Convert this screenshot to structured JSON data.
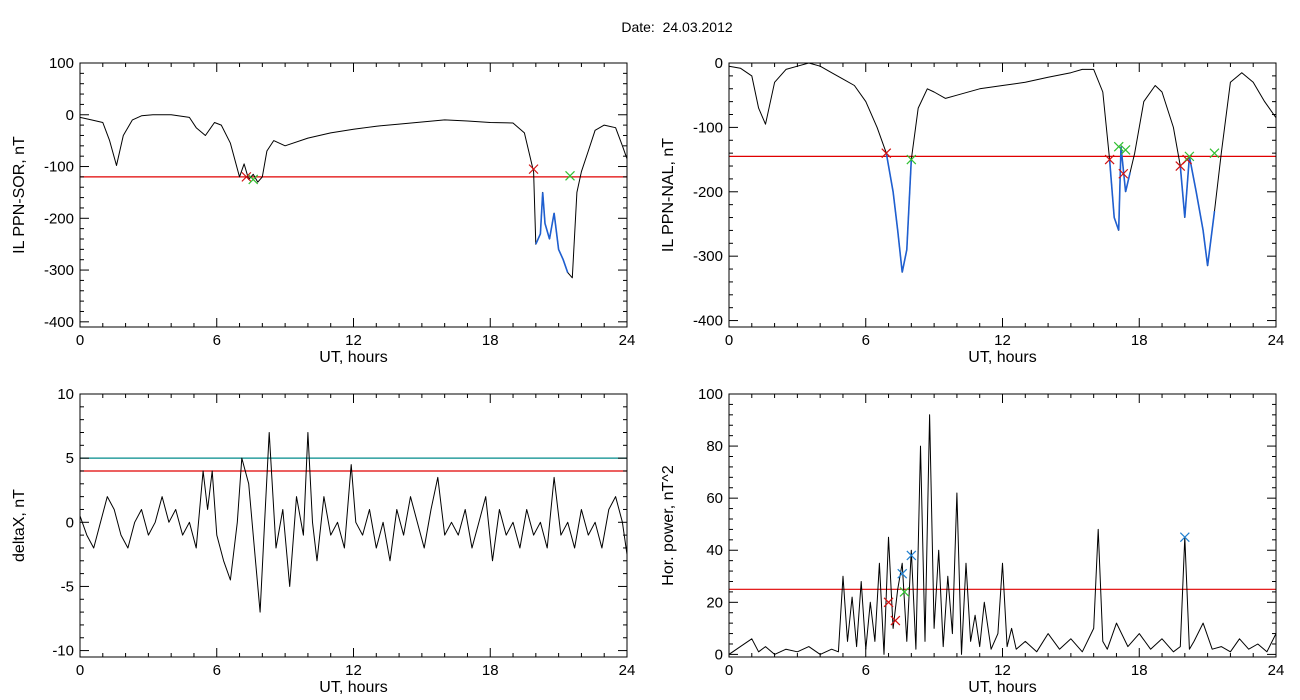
{
  "figure": {
    "title": "Date:  24.03.2012"
  },
  "colors": {
    "axis": "#000000",
    "threshold_red": "#e00000",
    "threshold_teal": "#008b8b",
    "event_blue": "#1f5fd0",
    "marker_red": "#d01010",
    "marker_green": "#30c030",
    "marker_blue": "#2080d0"
  },
  "chart_data": [
    {
      "type": "line",
      "id": "il-sor",
      "xlabel": "UT, hours",
      "ylabel": "IL PPN-SOR, nT",
      "xlim": [
        0,
        24
      ],
      "ylim": [
        -410,
        100
      ],
      "xticks": [
        0,
        6,
        12,
        18,
        24
      ],
      "yticks": [
        100,
        0,
        -100,
        -200,
        -300,
        -400
      ],
      "threshold": {
        "value": -120,
        "color": "red"
      },
      "series": [
        {
          "x": [
            0,
            0.5,
            1.0,
            1.3,
            1.6,
            1.9,
            2.3,
            2.7,
            3.2,
            4.0,
            4.8,
            5.1,
            5.5,
            5.9,
            6.2,
            6.6,
            7.0,
            7.2,
            7.4,
            7.6,
            7.8,
            8.0,
            8.2,
            8.5,
            9.0,
            10.0,
            11.0,
            12.0,
            13.0,
            14.0,
            15.0,
            16.0,
            17.0,
            18.0,
            19.0,
            19.5,
            19.9,
            20.0,
            20.2,
            20.3,
            20.4,
            20.6,
            20.8,
            21.0,
            21.2,
            21.4,
            21.6,
            21.8,
            22.0,
            22.3,
            22.6,
            23.0,
            23.5,
            23.8,
            24.0
          ],
          "y": [
            -5,
            -10,
            -15,
            -50,
            -98,
            -40,
            -10,
            -2,
            0,
            0,
            -5,
            -25,
            -40,
            -15,
            -20,
            -55,
            -120,
            -95,
            -125,
            -115,
            -130,
            -120,
            -70,
            -50,
            -60,
            -45,
            -35,
            -28,
            -22,
            -18,
            -14,
            -10,
            -12,
            -15,
            -16,
            -35,
            -110,
            -250,
            -230,
            -150,
            -210,
            -240,
            -190,
            -260,
            -280,
            -305,
            -315,
            -150,
            -110,
            -70,
            -30,
            -20,
            -25,
            -60,
            -85
          ]
        }
      ],
      "event_segments": [
        [
          19.95,
          21.5
        ]
      ],
      "markers": [
        {
          "x": 7.3,
          "y": -120,
          "color": "red"
        },
        {
          "x": 7.6,
          "y": -125,
          "color": "green"
        },
        {
          "x": 19.9,
          "y": -105,
          "color": "red"
        },
        {
          "x": 21.5,
          "y": -118,
          "color": "green"
        }
      ]
    },
    {
      "type": "line",
      "id": "il-nal",
      "xlabel": "UT, hours",
      "ylabel": "IL PPN-NAL, nT",
      "xlim": [
        0,
        24
      ],
      "ylim": [
        -410,
        0
      ],
      "xticks": [
        0,
        6,
        12,
        18,
        24
      ],
      "yticks": [
        0,
        -100,
        -200,
        -300,
        -400
      ],
      "threshold": {
        "value": -145,
        "color": "red"
      },
      "series": [
        {
          "x": [
            0,
            0.5,
            1.0,
            1.3,
            1.6,
            2.0,
            2.5,
            3.0,
            3.5,
            4.0,
            4.5,
            5.0,
            5.5,
            6.0,
            6.5,
            6.9,
            7.2,
            7.4,
            7.6,
            7.8,
            8.0,
            8.3,
            8.7,
            9.0,
            9.5,
            10.0,
            11.0,
            12.0,
            13.0,
            14.0,
            15.0,
            15.5,
            16.0,
            16.4,
            16.7,
            16.9,
            17.1,
            17.2,
            17.4,
            17.6,
            17.8,
            18.2,
            18.7,
            19.0,
            19.5,
            19.8,
            20.0,
            20.2,
            20.5,
            20.8,
            21.0,
            21.3,
            21.6,
            22.0,
            22.5,
            23.0,
            23.5,
            24.0
          ],
          "y": [
            -5,
            -8,
            -20,
            -70,
            -95,
            -30,
            -10,
            -5,
            0,
            -5,
            -15,
            -25,
            -35,
            -60,
            -100,
            -140,
            -200,
            -260,
            -325,
            -290,
            -150,
            -70,
            -40,
            -45,
            -55,
            -50,
            -40,
            -35,
            -30,
            -22,
            -15,
            -10,
            -10,
            -45,
            -150,
            -240,
            -260,
            -130,
            -200,
            -170,
            -140,
            -60,
            -35,
            -45,
            -100,
            -160,
            -240,
            -145,
            -200,
            -260,
            -315,
            -230,
            -140,
            -30,
            -15,
            -30,
            -60,
            -85
          ]
        }
      ],
      "event_segments": [
        [
          6.9,
          8.0
        ],
        [
          16.7,
          17.6
        ],
        [
          19.8,
          21.3
        ]
      ],
      "markers": [
        {
          "x": 6.9,
          "y": -140,
          "color": "red"
        },
        {
          "x": 8.0,
          "y": -150,
          "color": "green"
        },
        {
          "x": 16.7,
          "y": -150,
          "color": "red"
        },
        {
          "x": 17.1,
          "y": -130,
          "color": "green"
        },
        {
          "x": 17.3,
          "y": -172,
          "color": "red"
        },
        {
          "x": 17.4,
          "y": -135,
          "color": "green"
        },
        {
          "x": 19.8,
          "y": -160,
          "color": "red"
        },
        {
          "x": 20.1,
          "y": -150,
          "color": "red"
        },
        {
          "x": 20.2,
          "y": -145,
          "color": "green"
        },
        {
          "x": 21.3,
          "y": -140,
          "color": "green"
        }
      ]
    },
    {
      "type": "line",
      "id": "delta-x",
      "xlabel": "UT, hours",
      "ylabel": "deltaX, nT",
      "xlim": [
        0,
        24
      ],
      "ylim": [
        -10.5,
        10
      ],
      "xticks": [
        0,
        6,
        12,
        18,
        24
      ],
      "yticks": [
        10,
        5,
        0,
        -5,
        -10
      ],
      "thresholds": [
        {
          "value": 5,
          "color": "teal"
        },
        {
          "value": 4,
          "color": "red"
        }
      ],
      "series": [
        {
          "x": [
            0,
            0.3,
            0.6,
            0.9,
            1.2,
            1.5,
            1.8,
            2.1,
            2.4,
            2.7,
            3.0,
            3.3,
            3.6,
            3.9,
            4.2,
            4.5,
            4.8,
            5.1,
            5.4,
            5.6,
            5.8,
            6.0,
            6.3,
            6.6,
            6.9,
            7.1,
            7.4,
            7.7,
            7.9,
            8.1,
            8.3,
            8.6,
            8.9,
            9.2,
            9.5,
            9.8,
            10.0,
            10.2,
            10.4,
            10.7,
            11.0,
            11.3,
            11.6,
            11.9,
            12.1,
            12.4,
            12.7,
            13.0,
            13.3,
            13.6,
            13.9,
            14.2,
            14.5,
            14.8,
            15.1,
            15.4,
            15.7,
            16.0,
            16.3,
            16.6,
            16.9,
            17.2,
            17.5,
            17.8,
            18.1,
            18.4,
            18.7,
            19.0,
            19.3,
            19.6,
            19.9,
            20.2,
            20.5,
            20.8,
            21.1,
            21.4,
            21.7,
            22.0,
            22.3,
            22.6,
            22.9,
            23.2,
            23.5,
            23.8,
            24.0
          ],
          "y": [
            0.5,
            -1,
            -2,
            0,
            2,
            1,
            -1,
            -2,
            0,
            1,
            -1,
            0,
            2,
            0,
            1,
            -1,
            0,
            -2,
            4,
            1,
            4,
            -1,
            -3,
            -4.5,
            0,
            5,
            3,
            -3,
            -7,
            0,
            7,
            -2,
            1,
            -5,
            2,
            -1,
            7,
            0,
            -3,
            2,
            -1,
            0,
            -2,
            4.5,
            0,
            -1,
            1,
            -2,
            0,
            -3,
            1,
            -1,
            2,
            0,
            -2,
            1,
            3.5,
            -1,
            0,
            -1,
            1,
            -2,
            0,
            2,
            -3,
            1,
            -1,
            0,
            -2,
            1,
            -1,
            0,
            -2,
            3.5,
            -1,
            0,
            -2,
            1,
            -1,
            0,
            -2,
            1,
            2,
            0,
            -2.5
          ]
        }
      ]
    },
    {
      "type": "line",
      "id": "hor-power",
      "xlabel": "UT, hours",
      "ylabel": "Hor. power, nT^2",
      "xlim": [
        0,
        24
      ],
      "ylim": [
        -1,
        100
      ],
      "xticks": [
        0,
        6,
        12,
        18,
        24
      ],
      "yticks": [
        100,
        80,
        60,
        40,
        20,
        0
      ],
      "threshold": {
        "value": 25,
        "color": "red"
      },
      "series": [
        {
          "x": [
            0,
            0.5,
            1.0,
            1.3,
            1.6,
            2.0,
            2.5,
            3.0,
            3.5,
            4.0,
            4.5,
            4.8,
            5.0,
            5.2,
            5.4,
            5.6,
            5.8,
            6.0,
            6.2,
            6.4,
            6.6,
            6.8,
            7.0,
            7.2,
            7.4,
            7.6,
            7.8,
            8.0,
            8.2,
            8.4,
            8.6,
            8.8,
            9.0,
            9.2,
            9.4,
            9.6,
            9.8,
            10.0,
            10.2,
            10.4,
            10.6,
            10.8,
            11.0,
            11.2,
            11.5,
            11.8,
            12.0,
            12.2,
            12.4,
            12.6,
            13.0,
            13.5,
            14.0,
            14.5,
            15.0,
            15.5,
            16.0,
            16.2,
            16.4,
            16.6,
            17.0,
            17.5,
            18.0,
            18.5,
            19.0,
            19.5,
            19.8,
            20.0,
            20.2,
            20.4,
            20.8,
            21.2,
            21.6,
            22.0,
            22.4,
            22.8,
            23.2,
            23.6,
            24.0
          ],
          "y": [
            0,
            3,
            6,
            1,
            3,
            0,
            2,
            1,
            3,
            0,
            2,
            1,
            30,
            5,
            22,
            3,
            28,
            2,
            20,
            5,
            35,
            0,
            45,
            10,
            25,
            35,
            5,
            40,
            2,
            80,
            5,
            92,
            10,
            40,
            3,
            30,
            8,
            62,
            0,
            35,
            5,
            15,
            3,
            20,
            2,
            8,
            35,
            3,
            10,
            2,
            5,
            1,
            8,
            2,
            6,
            1,
            10,
            48,
            5,
            2,
            12,
            3,
            8,
            2,
            6,
            1,
            3,
            45,
            2,
            5,
            12,
            2,
            3,
            1,
            6,
            2,
            4,
            1,
            8
          ]
        }
      ],
      "markers": [
        {
          "x": 7.0,
          "y": 20,
          "color": "red"
        },
        {
          "x": 7.3,
          "y": 13,
          "color": "red"
        },
        {
          "x": 7.6,
          "y": 31,
          "color": "blue"
        },
        {
          "x": 7.7,
          "y": 24,
          "color": "green"
        },
        {
          "x": 8.0,
          "y": 38,
          "color": "blue"
        },
        {
          "x": 20.0,
          "y": 45,
          "color": "blue"
        }
      ]
    }
  ]
}
